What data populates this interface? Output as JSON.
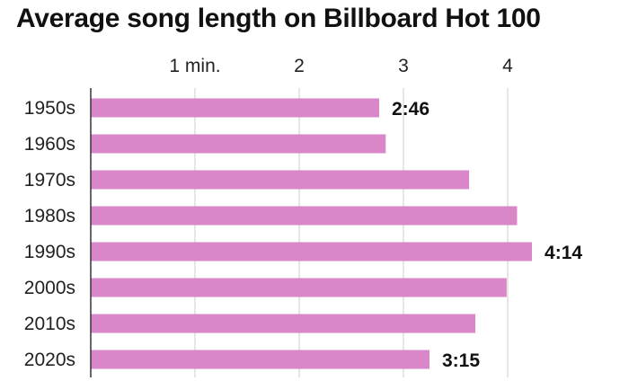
{
  "chart_data": {
    "type": "bar",
    "orientation": "horizontal",
    "title": "Average song length on Billboard Hot 100",
    "categories": [
      "1950s",
      "1960s",
      "1970s",
      "1980s",
      "1990s",
      "2000s",
      "2010s",
      "2020s"
    ],
    "values": [
      2.767,
      2.83,
      3.63,
      4.09,
      4.233,
      3.99,
      3.69,
      3.25
    ],
    "data_labels": [
      "2:46",
      "",
      "",
      "",
      "4:14",
      "",
      "",
      "3:15"
    ],
    "x_ticks": [
      {
        "value": 1,
        "label": "1 min."
      },
      {
        "value": 2,
        "label": "2"
      },
      {
        "value": 3,
        "label": "3"
      },
      {
        "value": 4,
        "label": "4"
      }
    ],
    "xlim": [
      0,
      4.4
    ],
    "x_axis_position": "top",
    "grid": true,
    "colors": {
      "bar": "#d987c8",
      "grid": "#dddddd",
      "axis": "#333333"
    }
  }
}
